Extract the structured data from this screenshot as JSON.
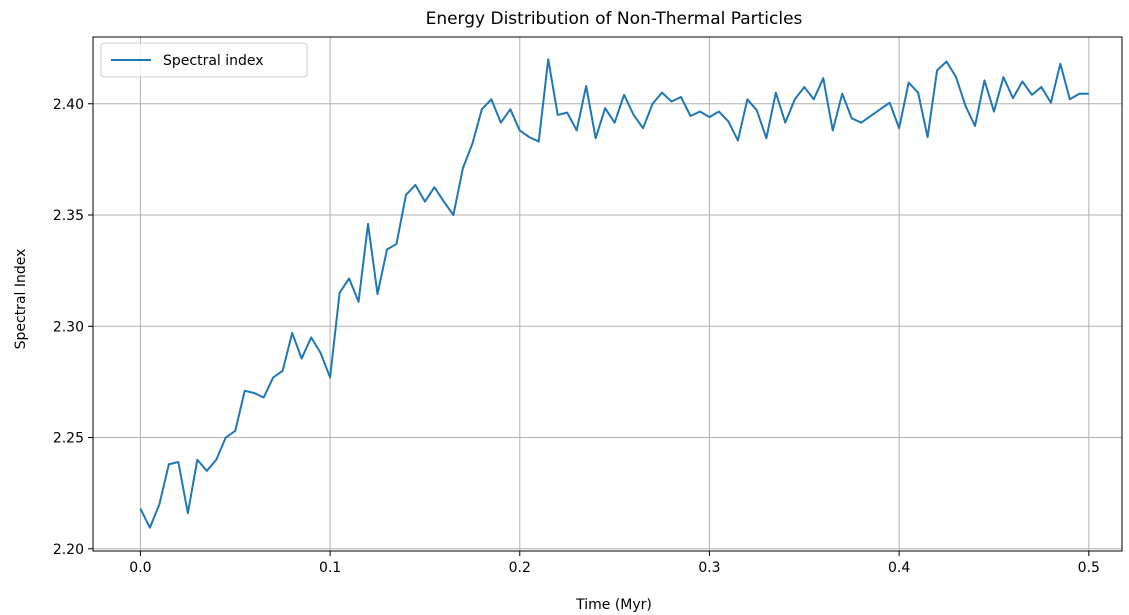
{
  "chart_data": {
    "type": "line",
    "title": "Energy Distribution of Non-Thermal Particles",
    "xlabel": "Time (Myr)",
    "ylabel": "Spectral Index",
    "xlim": [
      -0.025,
      0.5175
    ],
    "ylim": [
      2.199,
      2.43
    ],
    "xticks": [
      0.0,
      0.1,
      0.2,
      0.3,
      0.4,
      0.5
    ],
    "xtick_labels": [
      "0.0",
      "0.1",
      "0.2",
      "0.3",
      "0.4",
      "0.5"
    ],
    "yticks": [
      2.2,
      2.25,
      2.3,
      2.35,
      2.4
    ],
    "ytick_labels": [
      "2.20",
      "2.25",
      "2.30",
      "2.35",
      "2.40"
    ],
    "grid": true,
    "legend_position": "top-left",
    "color": "#1f77b4",
    "series": [
      {
        "name": "Spectral index",
        "x": [
          0.0,
          0.005,
          0.01,
          0.015,
          0.02,
          0.025,
          0.03,
          0.035,
          0.04,
          0.045,
          0.05,
          0.055,
          0.06,
          0.065,
          0.07,
          0.075,
          0.08,
          0.085,
          0.09,
          0.095,
          0.1,
          0.105,
          0.11,
          0.115,
          0.12,
          0.125,
          0.13,
          0.135,
          0.14,
          0.145,
          0.15,
          0.155,
          0.16,
          0.165,
          0.17,
          0.175,
          0.18,
          0.185,
          0.19,
          0.195,
          0.2,
          0.205,
          0.21,
          0.215,
          0.22,
          0.225,
          0.23,
          0.235,
          0.24,
          0.245,
          0.25,
          0.255,
          0.26,
          0.265,
          0.27,
          0.275,
          0.28,
          0.285,
          0.29,
          0.295,
          0.3,
          0.305,
          0.31,
          0.315,
          0.32,
          0.325,
          0.33,
          0.335,
          0.34,
          0.345,
          0.35,
          0.355,
          0.36,
          0.365,
          0.37,
          0.375,
          0.38,
          0.385,
          0.39,
          0.395,
          0.4,
          0.405,
          0.41,
          0.415,
          0.42,
          0.425,
          0.43,
          0.435,
          0.44,
          0.445,
          0.45,
          0.455,
          0.46,
          0.465,
          0.47,
          0.475,
          0.48,
          0.485,
          0.49,
          0.495,
          0.5
        ],
        "y": [
          2.218,
          2.2095,
          2.22,
          2.238,
          2.239,
          2.216,
          2.24,
          2.235,
          2.24,
          2.25,
          2.253,
          2.271,
          2.27,
          2.268,
          2.277,
          2.28,
          2.297,
          2.2855,
          2.295,
          2.288,
          2.277,
          2.315,
          2.3215,
          2.311,
          2.346,
          2.3145,
          2.3345,
          2.337,
          2.359,
          2.3635,
          2.356,
          2.3625,
          2.356,
          2.35,
          2.371,
          2.382,
          2.3975,
          2.402,
          2.3915,
          2.3975,
          2.388,
          2.385,
          2.383,
          2.42,
          2.395,
          2.396,
          2.388,
          2.408,
          2.3845,
          2.398,
          2.3915,
          2.404,
          2.395,
          2.389,
          2.4,
          2.405,
          2.401,
          2.403,
          2.3945,
          2.3965,
          2.394,
          2.3965,
          2.392,
          2.3835,
          2.402,
          2.397,
          2.3845,
          2.405,
          2.3915,
          2.402,
          2.4075,
          2.402,
          2.4115,
          2.388,
          2.4045,
          2.3935,
          2.3915,
          2.3945,
          2.3975,
          2.4005,
          2.389,
          2.4095,
          2.405,
          2.385,
          2.415,
          2.419,
          2.412,
          2.399,
          2.39,
          2.4105,
          2.3965,
          2.412,
          2.4025,
          2.41,
          2.404,
          2.4075,
          2.4005,
          2.418,
          2.402,
          2.4045,
          2.4045
        ]
      }
    ]
  }
}
